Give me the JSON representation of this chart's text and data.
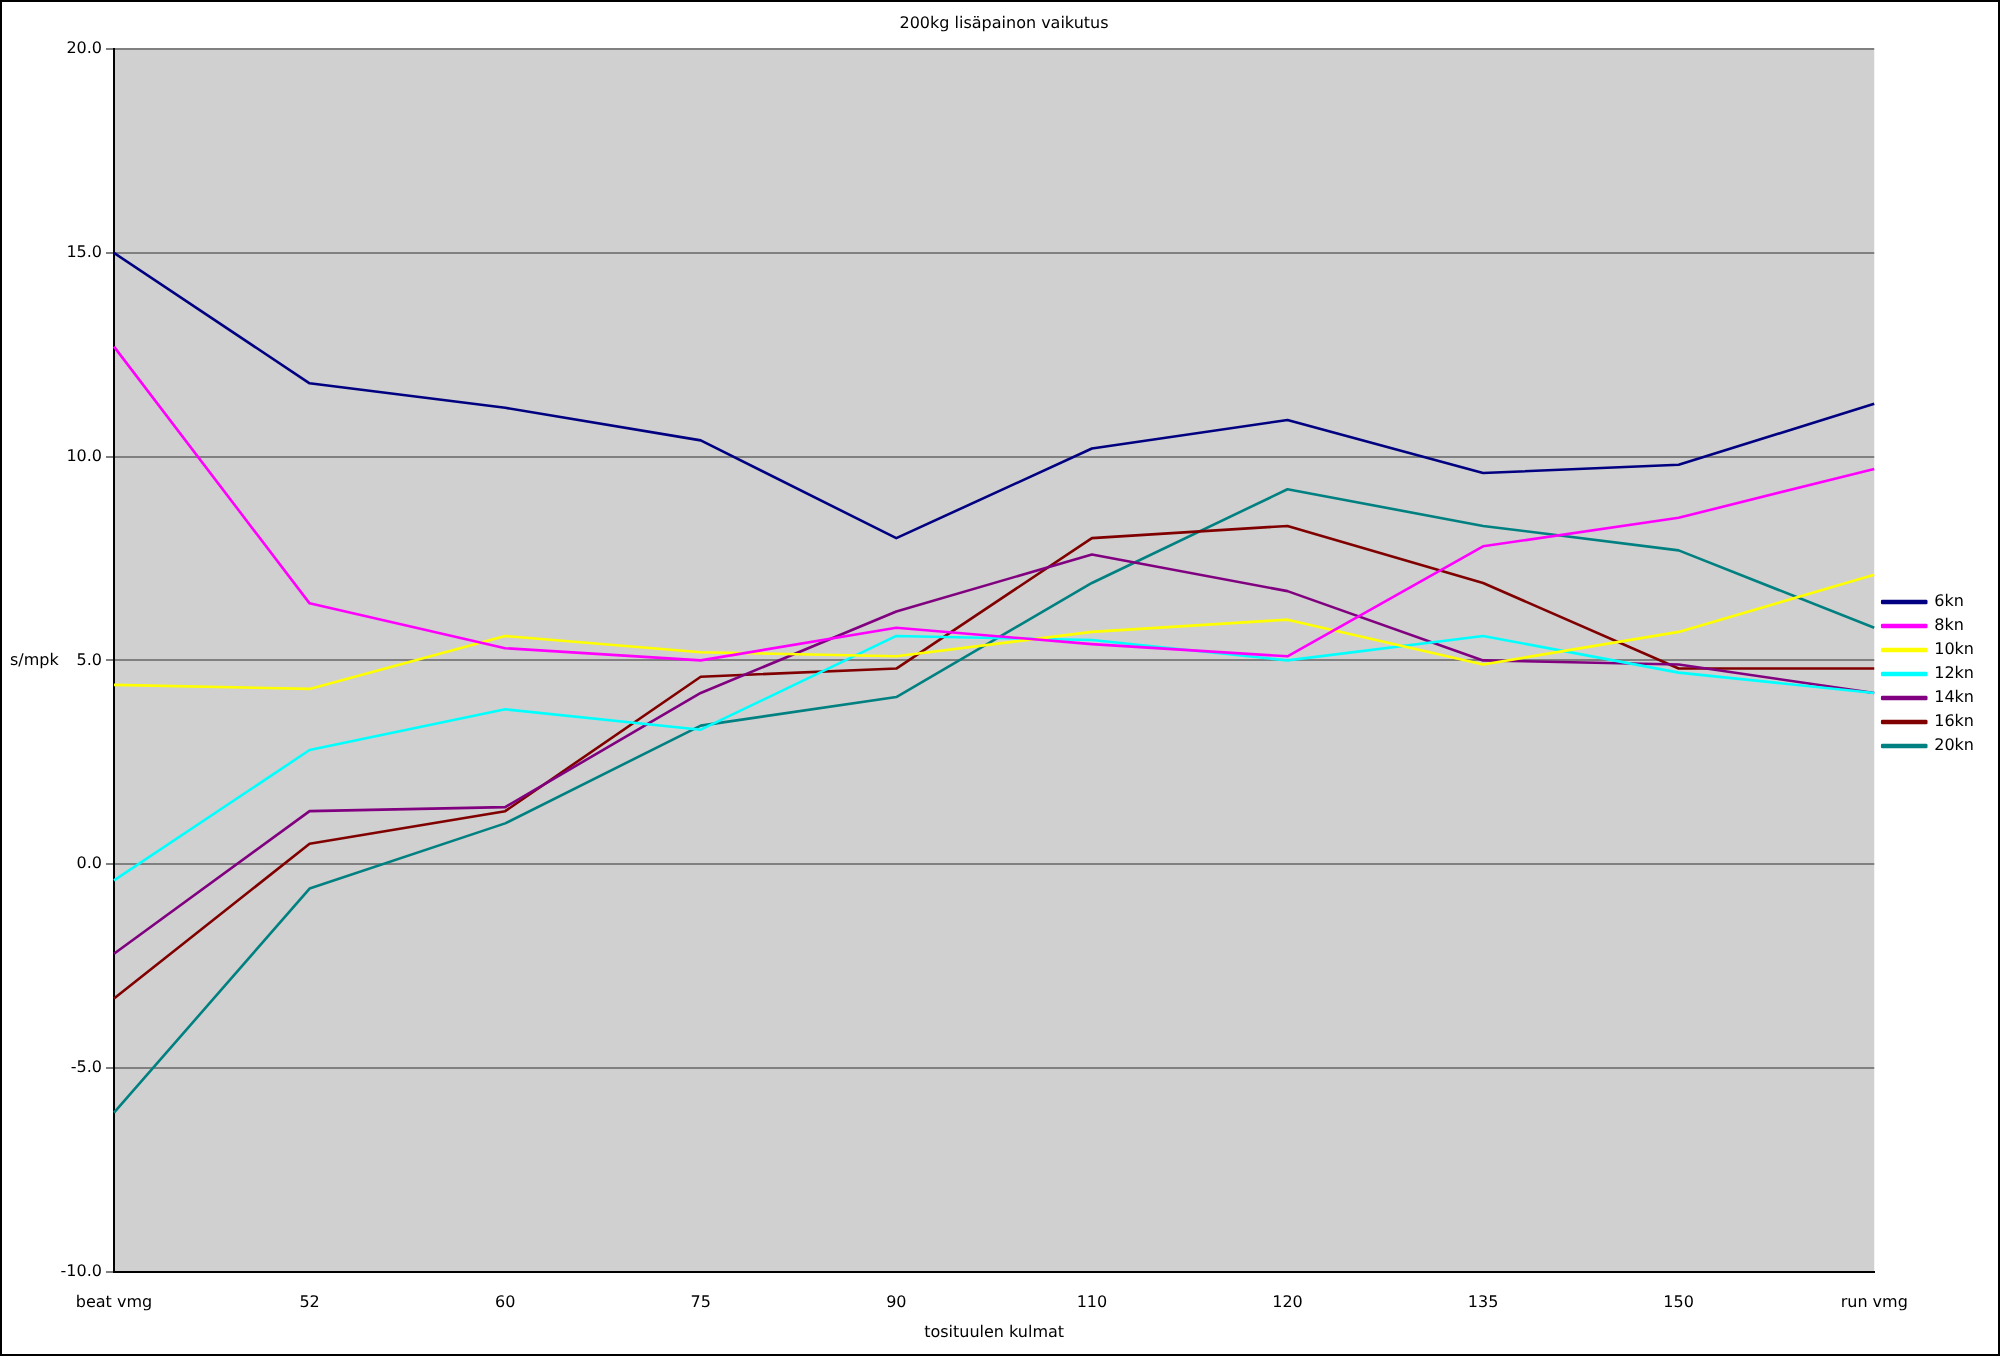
{
  "chart_data": {
    "type": "line",
    "title": "200kg lisäpainon vaikutus",
    "xlabel": "tosituulen kulmat",
    "ylabel": "s/mpk",
    "categories": [
      "beat vmg",
      "52",
      "60",
      "75",
      "90",
      "110",
      "120",
      "135",
      "150",
      "run vmg"
    ],
    "ylim": [
      -10,
      20
    ],
    "yticks": [
      {
        "value": -10,
        "label": "-10.0"
      },
      {
        "value": -5,
        "label": "-5.0"
      },
      {
        "value": 0,
        "label": "0.0"
      },
      {
        "value": 5,
        "label": "5.0"
      },
      {
        "value": 10,
        "label": "10.0"
      },
      {
        "value": 15,
        "label": "15.0"
      },
      {
        "value": 20,
        "label": "20.0"
      }
    ],
    "grid": "y",
    "legend": "right",
    "marker": "none",
    "line_style": "solid",
    "series": [
      {
        "name": "6kn",
        "color": "#000080",
        "values": [
          15.0,
          11.8,
          11.2,
          10.4,
          8.0,
          10.2,
          10.9,
          9.6,
          9.8,
          11.3
        ]
      },
      {
        "name": "8kn",
        "color": "#ff00ff",
        "values": [
          12.7,
          6.4,
          5.3,
          5.0,
          5.8,
          5.4,
          5.1,
          7.8,
          8.5,
          9.7
        ]
      },
      {
        "name": "10kn",
        "color": "#ffff00",
        "values": [
          4.4,
          4.3,
          5.6,
          5.2,
          5.1,
          5.7,
          6.0,
          4.9,
          5.7,
          7.1
        ]
      },
      {
        "name": "12kn",
        "color": "#00ffff",
        "values": [
          -0.4,
          2.8,
          3.8,
          3.3,
          5.6,
          5.5,
          5.0,
          5.6,
          4.7,
          4.2
        ]
      },
      {
        "name": "14kn",
        "color": "#800080",
        "values": [
          -2.2,
          1.3,
          1.4,
          4.2,
          6.2,
          7.6,
          6.7,
          5.0,
          4.9,
          4.2
        ]
      },
      {
        "name": "16kn",
        "color": "#800000",
        "values": [
          -3.3,
          0.5,
          1.3,
          4.6,
          4.8,
          8.0,
          8.3,
          6.9,
          4.8,
          4.8
        ]
      },
      {
        "name": "20kn",
        "color": "#008080",
        "values": [
          -6.1,
          -0.6,
          1.0,
          3.4,
          4.1,
          6.9,
          9.2,
          8.3,
          7.7,
          5.8
        ]
      }
    ]
  }
}
